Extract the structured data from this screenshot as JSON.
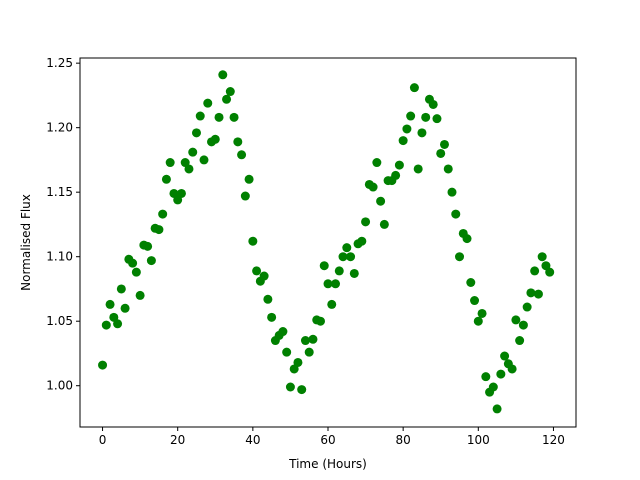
{
  "chart_data": {
    "type": "scatter",
    "title": "",
    "xlabel": "Time (Hours)",
    "ylabel": "Normalised Flux",
    "xlim": [
      -6,
      126
    ],
    "ylim": [
      0.968,
      1.254
    ],
    "xticks": [
      0,
      20,
      40,
      60,
      80,
      100,
      120
    ],
    "yticks": [
      1.0,
      1.05,
      1.1,
      1.15,
      1.2,
      1.25
    ],
    "xtick_labels": [
      "0",
      "20",
      "40",
      "60",
      "80",
      "100",
      "120"
    ],
    "ytick_labels": [
      "1.00",
      "1.05",
      "1.10",
      "1.15",
      "1.20",
      "1.25"
    ],
    "grid": false,
    "legend": "none",
    "marker_color": "#008000",
    "series": [
      {
        "x": [
          0,
          1,
          2,
          3,
          4,
          5,
          6,
          7,
          8,
          9,
          10,
          11,
          12,
          13,
          14,
          15,
          16,
          17,
          18,
          19,
          20,
          21,
          22,
          23,
          24,
          25,
          26,
          27,
          28,
          29,
          30,
          31,
          32,
          33,
          34,
          35,
          36,
          37,
          38,
          39,
          40,
          41,
          42,
          43,
          44,
          45,
          46,
          47,
          48,
          49,
          50,
          51,
          52,
          53,
          54,
          55,
          56,
          57,
          58,
          59,
          60,
          61,
          62,
          63,
          64,
          65,
          66,
          67,
          68,
          69,
          70,
          71,
          72,
          73,
          74,
          75,
          76,
          77,
          78,
          79,
          80,
          81,
          82,
          83,
          84,
          85,
          86,
          87,
          88,
          89,
          90,
          91,
          92,
          93,
          94,
          95,
          96,
          97,
          98,
          99,
          100,
          101,
          102,
          103,
          104,
          105,
          106,
          107,
          108,
          109,
          110,
          111,
          112,
          113,
          114,
          115,
          116,
          117,
          118,
          119
        ],
        "y": [
          1.016,
          1.047,
          1.063,
          1.053,
          1.048,
          1.075,
          1.06,
          1.098,
          1.095,
          1.088,
          1.07,
          1.109,
          1.108,
          1.097,
          1.122,
          1.121,
          1.133,
          1.16,
          1.173,
          1.149,
          1.144,
          1.149,
          1.173,
          1.168,
          1.181,
          1.196,
          1.209,
          1.175,
          1.219,
          1.189,
          1.191,
          1.208,
          1.241,
          1.222,
          1.228,
          1.208,
          1.189,
          1.179,
          1.147,
          1.16,
          1.112,
          1.089,
          1.081,
          1.085,
          1.067,
          1.053,
          1.035,
          1.039,
          1.042,
          1.026,
          0.999,
          1.013,
          1.018,
          0.997,
          1.035,
          1.026,
          1.036,
          1.051,
          1.05,
          1.093,
          1.079,
          1.063,
          1.079,
          1.089,
          1.1,
          1.107,
          1.1,
          1.087,
          1.11,
          1.112,
          1.127,
          1.156,
          1.154,
          1.173,
          1.143,
          1.125,
          1.159,
          1.159,
          1.163,
          1.171,
          1.19,
          1.199,
          1.209,
          1.231,
          1.168,
          1.196,
          1.208,
          1.222,
          1.218,
          1.207,
          1.18,
          1.187,
          1.168,
          1.15,
          1.133,
          1.1,
          1.118,
          1.114,
          1.08,
          1.066,
          1.05,
          1.056,
          1.007,
          0.995,
          0.999,
          0.982,
          1.009,
          1.023,
          1.017,
          1.013,
          1.051,
          1.035,
          1.047,
          1.061,
          1.072,
          1.089,
          1.071,
          1.1,
          1.093,
          1.088
        ]
      }
    ]
  }
}
